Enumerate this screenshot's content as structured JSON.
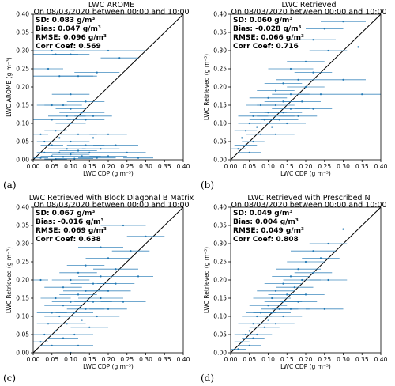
{
  "chart_data": [
    {
      "type": "scatter",
      "panel": "(a)",
      "title": "LWC AROME",
      "subtitle": "On 08/03/2020 between 00:00 and 10:00",
      "xlabel": "LWC CDP (g m⁻³)",
      "ylabel": "LWC AROME (g m⁻³)",
      "xlim": [
        0,
        0.4
      ],
      "ylim": [
        0,
        0.4
      ],
      "xticks": [
        "0.00",
        "0.05",
        "0.10",
        "0.15",
        "0.20",
        "0.25",
        "0.30",
        "0.35",
        "0.40"
      ],
      "yticks": [
        "0.00",
        "0.05",
        "0.10",
        "0.15",
        "0.20",
        "0.25",
        "0.30",
        "0.35",
        "0.40"
      ],
      "stats": [
        "SD: 0.083 g/m³",
        "Bias: 0.047 g/m³",
        "RMSE: 0.096 g/m³",
        "Corr Coef: 0.569"
      ],
      "one_to_one_line": true,
      "points": [
        [
          0.05,
          0.3,
          0.06
        ],
        [
          0.2,
          0.3,
          0.1
        ],
        [
          0.06,
          0.29,
          0.06
        ],
        [
          0.1,
          0.29,
          0.05
        ],
        [
          0.23,
          0.28,
          0.05
        ],
        [
          0.04,
          0.25,
          0.04
        ],
        [
          0.17,
          0.24,
          0.06
        ],
        [
          0.12,
          0.23,
          0.05
        ],
        [
          0.07,
          0.23,
          0.09
        ],
        [
          0.1,
          0.18,
          0.05
        ],
        [
          0.14,
          0.16,
          0.05
        ],
        [
          0.05,
          0.15,
          0.04
        ],
        [
          0.08,
          0.15,
          0.05
        ],
        [
          0.1,
          0.14,
          0.04
        ],
        [
          0.13,
          0.13,
          0.06
        ],
        [
          0.16,
          0.12,
          0.05
        ],
        [
          0.09,
          0.12,
          0.05
        ],
        [
          0.05,
          0.11,
          0.05
        ],
        [
          0.14,
          0.11,
          0.05
        ],
        [
          0.1,
          0.1,
          0.04
        ],
        [
          0.06,
          0.08,
          0.03
        ],
        [
          0.2,
          0.07,
          0.05
        ],
        [
          0.12,
          0.07,
          0.05
        ],
        [
          0.02,
          0.07,
          0.02
        ],
        [
          0.16,
          0.06,
          0.05
        ],
        [
          0.07,
          0.06,
          0.04
        ],
        [
          0.03,
          0.05,
          0.02
        ],
        [
          0.1,
          0.05,
          0.05
        ],
        [
          0.22,
          0.04,
          0.06
        ],
        [
          0.14,
          0.04,
          0.05
        ],
        [
          0.05,
          0.04,
          0.03
        ],
        [
          0.09,
          0.03,
          0.05
        ],
        [
          0.18,
          0.03,
          0.05
        ],
        [
          0.12,
          0.025,
          0.05
        ],
        [
          0.03,
          0.02,
          0.02
        ],
        [
          0.07,
          0.02,
          0.04
        ],
        [
          0.15,
          0.02,
          0.05
        ],
        [
          0.25,
          0.02,
          0.05
        ],
        [
          0.1,
          0.015,
          0.05
        ],
        [
          0.05,
          0.01,
          0.03
        ],
        [
          0.2,
          0.01,
          0.05
        ],
        [
          0.13,
          0.01,
          0.05
        ],
        [
          0.08,
          0.008,
          0.04
        ],
        [
          0.02,
          0.005,
          0.02
        ],
        [
          0.17,
          0.005,
          0.05
        ],
        [
          0.28,
          0.005,
          0.04
        ],
        [
          0.11,
          0.003,
          0.05
        ],
        [
          0.06,
          0.002,
          0.03
        ]
      ]
    },
    {
      "type": "scatter",
      "panel": "(b)",
      "title": "LWC Retrieved",
      "subtitle": "On 08/03/2020 between 00:00 and 10:00",
      "xlabel": "LWC CDP (g m⁻³)",
      "ylabel": "LWC Retrieved (g m⁻³)",
      "xlim": [
        0,
        0.4
      ],
      "ylim": [
        0,
        0.4
      ],
      "xticks": [
        "0.00",
        "0.05",
        "0.10",
        "0.15",
        "0.20",
        "0.25",
        "0.30",
        "0.35",
        "0.40"
      ],
      "yticks": [
        "0.00",
        "0.05",
        "0.10",
        "0.15",
        "0.20",
        "0.25",
        "0.30",
        "0.35",
        "0.40"
      ],
      "stats": [
        "SD: 0.060 g/m³",
        "Bias: -0.028 g/m³",
        "RMSE: 0.066 g/m³",
        "Corr Coef: 0.716"
      ],
      "one_to_one_line": true,
      "points": [
        [
          0.3,
          0.38,
          0.06
        ],
        [
          0.25,
          0.36,
          0.05
        ],
        [
          0.22,
          0.33,
          0.06
        ],
        [
          0.34,
          0.31,
          0.04
        ],
        [
          0.26,
          0.3,
          0.05
        ],
        [
          0.2,
          0.27,
          0.05
        ],
        [
          0.16,
          0.25,
          0.06
        ],
        [
          0.22,
          0.24,
          0.05
        ],
        [
          0.18,
          0.22,
          0.06
        ],
        [
          0.14,
          0.21,
          0.05
        ],
        [
          0.2,
          0.2,
          0.05
        ],
        [
          0.12,
          0.19,
          0.05
        ],
        [
          0.16,
          0.18,
          0.05
        ],
        [
          0.24,
          0.18,
          0.06
        ],
        [
          0.1,
          0.17,
          0.05
        ],
        [
          0.14,
          0.16,
          0.05
        ],
        [
          0.19,
          0.16,
          0.05
        ],
        [
          0.08,
          0.15,
          0.04
        ],
        [
          0.12,
          0.15,
          0.05
        ],
        [
          0.16,
          0.14,
          0.05
        ],
        [
          0.22,
          0.14,
          0.05
        ],
        [
          0.1,
          0.13,
          0.05
        ],
        [
          0.14,
          0.13,
          0.05
        ],
        [
          0.06,
          0.12,
          0.04
        ],
        [
          0.12,
          0.12,
          0.05
        ],
        [
          0.18,
          0.12,
          0.05
        ],
        [
          0.09,
          0.11,
          0.04
        ],
        [
          0.13,
          0.11,
          0.05
        ],
        [
          0.05,
          0.1,
          0.03
        ],
        [
          0.1,
          0.1,
          0.05
        ],
        [
          0.15,
          0.1,
          0.05
        ],
        [
          0.07,
          0.09,
          0.04
        ],
        [
          0.11,
          0.09,
          0.05
        ],
        [
          0.04,
          0.08,
          0.03
        ],
        [
          0.08,
          0.07,
          0.04
        ],
        [
          0.12,
          0.07,
          0.05
        ],
        [
          0.03,
          0.06,
          0.03
        ],
        [
          0.06,
          0.05,
          0.03
        ],
        [
          0.04,
          0.04,
          0.03
        ],
        [
          0.02,
          0.03,
          0.02
        ],
        [
          0.05,
          0.02,
          0.03
        ],
        [
          0.3,
          0.22,
          0.06
        ],
        [
          0.35,
          0.18,
          0.05
        ]
      ]
    },
    {
      "type": "scatter",
      "panel": "(c)",
      "title": "LWC Retrieved with Block Diagonal B Matrix",
      "subtitle": "On 08/03/2020 between 00:00 and 10:00",
      "xlabel": "LWC CDP (g m⁻³)",
      "ylabel": "LWC Retrieved (g m⁻³)",
      "xlim": [
        0,
        0.4
      ],
      "ylim": [
        0,
        0.4
      ],
      "xticks": [
        "0.00",
        "0.05",
        "0.10",
        "0.15",
        "0.20",
        "0.25",
        "0.30",
        "0.35",
        "0.40"
      ],
      "yticks": [
        "0.00",
        "0.05",
        "0.10",
        "0.15",
        "0.20",
        "0.25",
        "0.30",
        "0.35",
        "0.40"
      ],
      "stats": [
        "SD: 0.067 g/m³",
        "Bias: -0.016 g/m³",
        "RMSE: 0.069 g/m³",
        "Corr Coef: 0.638"
      ],
      "one_to_one_line": true,
      "points": [
        [
          0.24,
          0.35,
          0.06
        ],
        [
          0.3,
          0.32,
          0.05
        ],
        [
          0.18,
          0.29,
          0.06
        ],
        [
          0.26,
          0.28,
          0.05
        ],
        [
          0.2,
          0.26,
          0.06
        ],
        [
          0.14,
          0.24,
          0.05
        ],
        [
          0.22,
          0.23,
          0.06
        ],
        [
          0.12,
          0.22,
          0.05
        ],
        [
          0.18,
          0.21,
          0.06
        ],
        [
          0.28,
          0.21,
          0.04
        ],
        [
          0.1,
          0.2,
          0.05
        ],
        [
          0.16,
          0.19,
          0.06
        ],
        [
          0.22,
          0.19,
          0.05
        ],
        [
          0.08,
          0.18,
          0.05
        ],
        [
          0.14,
          0.17,
          0.06
        ],
        [
          0.2,
          0.17,
          0.06
        ],
        [
          0.12,
          0.16,
          0.05
        ],
        [
          0.18,
          0.15,
          0.06
        ],
        [
          0.06,
          0.15,
          0.04
        ],
        [
          0.1,
          0.14,
          0.05
        ],
        [
          0.16,
          0.14,
          0.05
        ],
        [
          0.24,
          0.14,
          0.06
        ],
        [
          0.08,
          0.13,
          0.05
        ],
        [
          0.14,
          0.12,
          0.05
        ],
        [
          0.2,
          0.12,
          0.05
        ],
        [
          0.05,
          0.11,
          0.04
        ],
        [
          0.11,
          0.11,
          0.05
        ],
        [
          0.17,
          0.1,
          0.06
        ],
        [
          0.07,
          0.1,
          0.04
        ],
        [
          0.13,
          0.09,
          0.05
        ],
        [
          0.04,
          0.08,
          0.03
        ],
        [
          0.09,
          0.08,
          0.05
        ],
        [
          0.15,
          0.07,
          0.05
        ],
        [
          0.06,
          0.06,
          0.04
        ],
        [
          0.11,
          0.05,
          0.05
        ],
        [
          0.03,
          0.05,
          0.03
        ],
        [
          0.08,
          0.04,
          0.04
        ],
        [
          0.02,
          0.03,
          0.02
        ],
        [
          0.05,
          0.02,
          0.03
        ],
        [
          0.12,
          0.02,
          0.04
        ],
        [
          0.1,
          0.0,
          0.04
        ],
        [
          0.02,
          0.2,
          0.02
        ]
      ]
    },
    {
      "type": "scatter",
      "panel": "(d)",
      "title": "LWC Retrieved with Prescribed N",
      "subtitle": "On 08/03/2020 between 00:00 and 10:00",
      "xlabel": "LWC CDP (g m⁻³)",
      "ylabel": "LWC Retrieved (g m⁻³)",
      "xlim": [
        0,
        0.4
      ],
      "ylim": [
        0,
        0.4
      ],
      "xticks": [
        "0.00",
        "0.05",
        "0.10",
        "0.15",
        "0.20",
        "0.25",
        "0.30",
        "0.35",
        "0.40"
      ],
      "yticks": [
        "0.00",
        "0.05",
        "0.10",
        "0.15",
        "0.20",
        "0.25",
        "0.30",
        "0.35",
        "0.40"
      ],
      "stats": [
        "SD: 0.049 g/m³",
        "Bias: 0.004 g/m³",
        "RMSE: 0.049 g/m³",
        "Corr Coef: 0.808"
      ],
      "one_to_one_line": true,
      "points": [
        [
          0.3,
          0.34,
          0.05
        ],
        [
          0.26,
          0.3,
          0.05
        ],
        [
          0.22,
          0.28,
          0.06
        ],
        [
          0.24,
          0.26,
          0.05
        ],
        [
          0.2,
          0.25,
          0.05
        ],
        [
          0.18,
          0.23,
          0.06
        ],
        [
          0.22,
          0.22,
          0.05
        ],
        [
          0.16,
          0.21,
          0.05
        ],
        [
          0.19,
          0.2,
          0.05
        ],
        [
          0.26,
          0.2,
          0.05
        ],
        [
          0.14,
          0.19,
          0.05
        ],
        [
          0.17,
          0.18,
          0.05
        ],
        [
          0.12,
          0.17,
          0.05
        ],
        [
          0.15,
          0.16,
          0.05
        ],
        [
          0.2,
          0.16,
          0.05
        ],
        [
          0.11,
          0.15,
          0.05
        ],
        [
          0.14,
          0.14,
          0.05
        ],
        [
          0.18,
          0.14,
          0.05
        ],
        [
          0.1,
          0.13,
          0.05
        ],
        [
          0.13,
          0.12,
          0.05
        ],
        [
          0.16,
          0.12,
          0.05
        ],
        [
          0.08,
          0.11,
          0.04
        ],
        [
          0.11,
          0.11,
          0.05
        ],
        [
          0.14,
          0.1,
          0.05
        ],
        [
          0.07,
          0.1,
          0.04
        ],
        [
          0.1,
          0.09,
          0.05
        ],
        [
          0.12,
          0.08,
          0.05
        ],
        [
          0.06,
          0.08,
          0.04
        ],
        [
          0.09,
          0.07,
          0.04
        ],
        [
          0.05,
          0.06,
          0.03
        ],
        [
          0.07,
          0.05,
          0.04
        ],
        [
          0.04,
          0.05,
          0.03
        ],
        [
          0.06,
          0.04,
          0.03
        ],
        [
          0.03,
          0.03,
          0.02
        ],
        [
          0.05,
          0.02,
          0.03
        ],
        [
          0.02,
          0.01,
          0.02
        ],
        [
          0.25,
          0.12,
          0.05
        ]
      ]
    }
  ]
}
